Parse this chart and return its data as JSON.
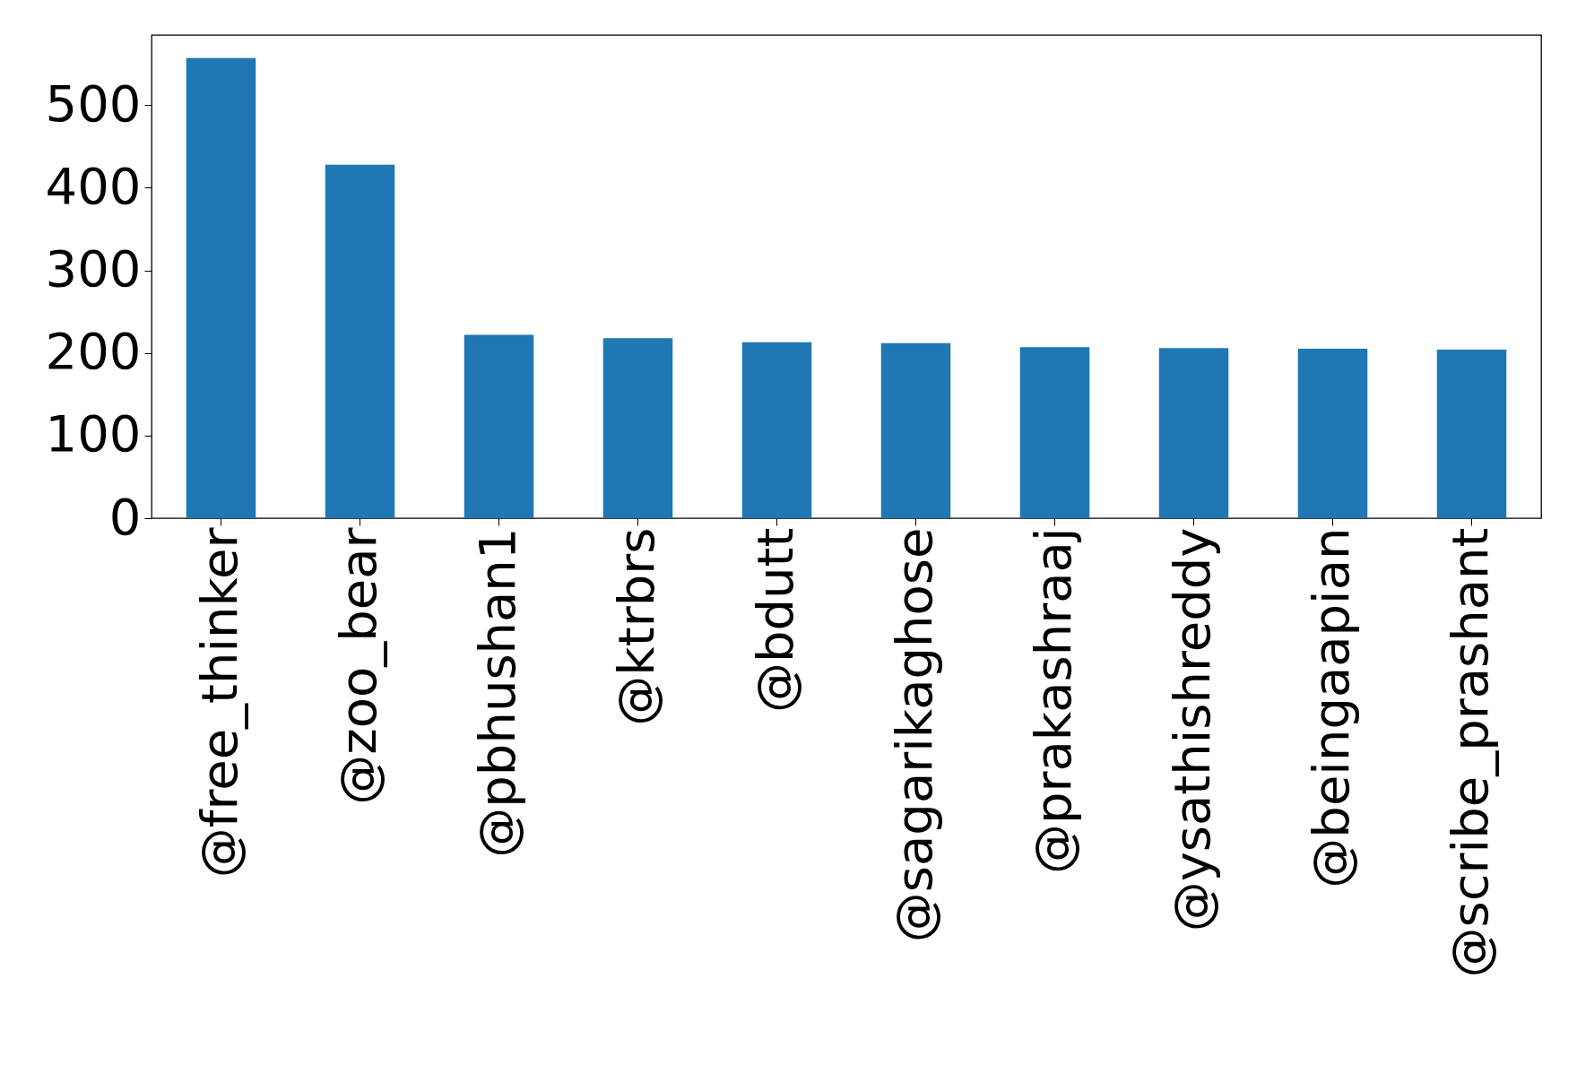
{
  "chart_data": {
    "type": "bar",
    "categories": [
      "@free_thinker",
      "@zoo_bear",
      "@pbhushan1",
      "@ktrbrs",
      "@bdutt",
      "@sagarikaghose",
      "@prakashraaj",
      "@ysathishreddy",
      "@beingaapian",
      "@scribe_prashant"
    ],
    "values": [
      557,
      428,
      222,
      218,
      213,
      212,
      207,
      206,
      205,
      204
    ],
    "color": "#1f77b4",
    "ylim": [
      0,
      585
    ],
    "yticks": [
      0,
      100,
      200,
      300,
      400,
      500
    ],
    "grid": false
  }
}
